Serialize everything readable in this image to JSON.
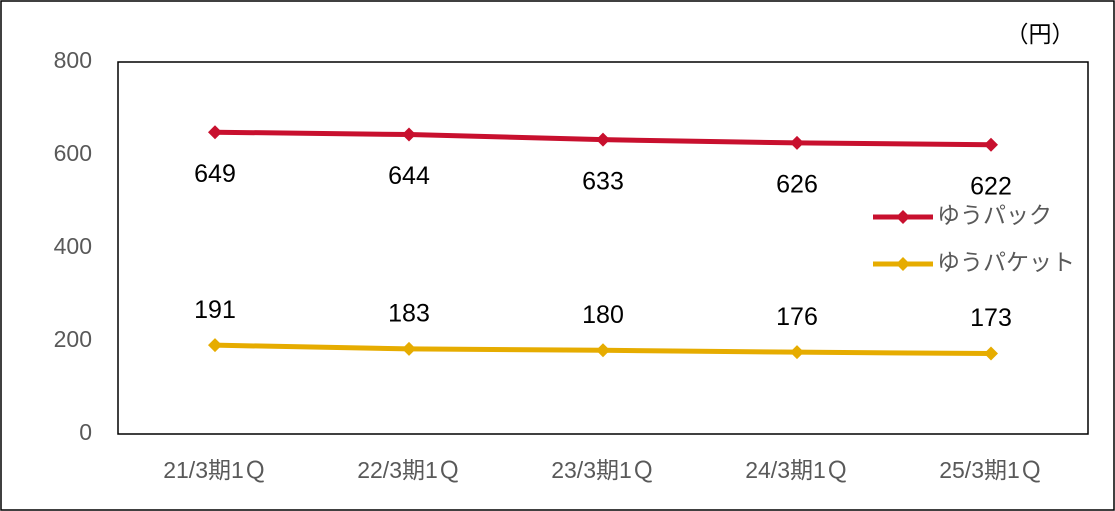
{
  "chart_data": {
    "type": "line",
    "unit": "（円）",
    "categories": [
      "21/3期1Ｑ",
      "22/3期1Ｑ",
      "23/3期1Ｑ",
      "24/3期1Ｑ",
      "25/3期1Ｑ"
    ],
    "series": [
      {
        "name": "ゆうパック",
        "color": "#c8102e",
        "values": [
          649,
          644,
          633,
          626,
          622
        ]
      },
      {
        "name": "ゆうパケット",
        "color": "#e6ac00",
        "values": [
          191,
          183,
          180,
          176,
          173
        ]
      }
    ],
    "ylim": [
      0,
      800
    ],
    "yticks": [
      0,
      200,
      400,
      600,
      800
    ],
    "legend": "right"
  }
}
